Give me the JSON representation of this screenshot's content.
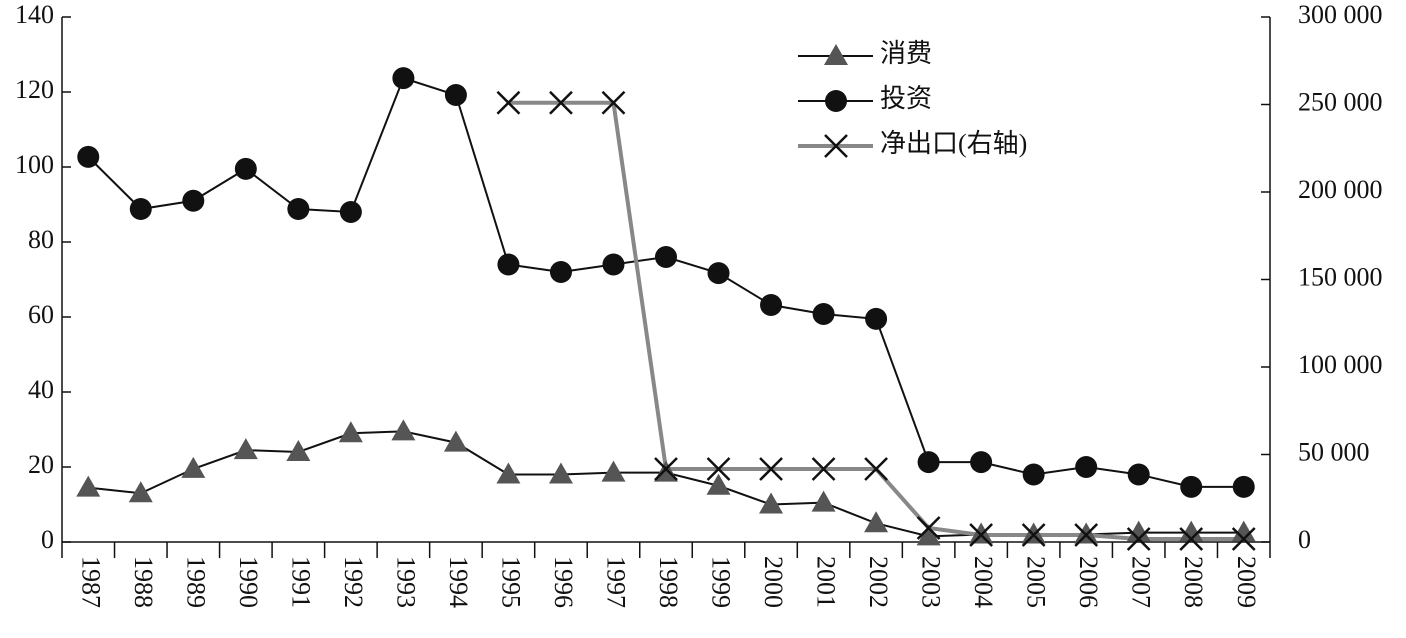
{
  "chart_data": {
    "type": "line",
    "categories": [
      "1987",
      "1988",
      "1989",
      "1990",
      "1991",
      "1992",
      "1993",
      "1994",
      "1995",
      "1996",
      "1997",
      "1998",
      "1999",
      "2000",
      "2001",
      "2002",
      "2003",
      "2004",
      "2005",
      "2006",
      "2007",
      "2008",
      "2009"
    ],
    "series": [
      {
        "name": "消费",
        "color": "#111111",
        "marker": "triangle",
        "marker_color": "#555555",
        "values": [
          14.5,
          13,
          19.5,
          24.5,
          24,
          29,
          29.5,
          26.5,
          18,
          18,
          18.5,
          18.5,
          15,
          10,
          10.5,
          5,
          1.5,
          2,
          2,
          2,
          2.5,
          2.5,
          2.5
        ]
      },
      {
        "name": "投资",
        "color": "#111111",
        "marker": "circle",
        "marker_color": "#111111",
        "values": [
          102.7,
          88.8,
          91,
          99.5,
          88.8,
          88,
          123.7,
          119.2,
          74,
          72,
          74,
          76,
          71.7,
          63.2,
          60.8,
          59.5,
          21.3,
          21.3,
          18,
          20,
          18,
          14.7,
          14.7
        ]
      },
      {
        "name": "净出口(右轴)",
        "color": "#888888",
        "marker": "x",
        "marker_color": "#111111",
        "axis": "y2",
        "values": [
          null,
          null,
          null,
          null,
          null,
          null,
          null,
          null,
          251000,
          251000,
          251000,
          41700,
          41700,
          41700,
          41700,
          41700,
          8000,
          4000,
          4000,
          4000,
          1700,
          1700,
          1700
        ]
      }
    ],
    "ylim": [
      0,
      140
    ],
    "yticks": [
      0,
      20,
      40,
      60,
      80,
      100,
      120,
      140
    ],
    "y2lim": [
      0,
      300000
    ],
    "y2ticks": [
      0,
      {
        "value": 50000,
        "label": "50 000"
      },
      {
        "value": 100000,
        "label": "100 000"
      },
      {
        "value": 150000,
        "label": "150 000"
      },
      {
        "value": 200000,
        "label": "200 000"
      },
      {
        "value": 250000,
        "label": "250 000"
      },
      {
        "value": 300000,
        "label": "300 000"
      }
    ],
    "grid": false,
    "legend": "top-right"
  }
}
